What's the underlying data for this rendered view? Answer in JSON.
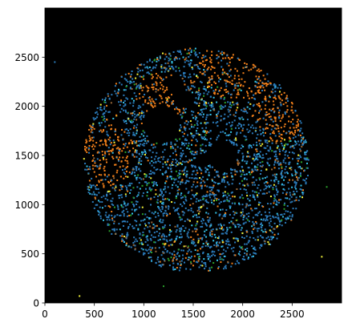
{
  "chart_data": {
    "type": "scatter",
    "title": "",
    "xlabel": "",
    "ylabel": "",
    "xlim": [
      0,
      3000
    ],
    "ylim": [
      0,
      3000
    ],
    "grid": false,
    "background_color": "#000000",
    "x_ticks": [
      0,
      500,
      1000,
      1500,
      2000,
      2500
    ],
    "y_ticks": [
      0,
      500,
      1000,
      1500,
      2000,
      2500
    ],
    "x_tick_labels": [
      "0",
      "500",
      "1000",
      "1500",
      "2000",
      "2500"
    ],
    "y_tick_labels": [
      "0",
      "500",
      "1000",
      "1500",
      "2000",
      "2500"
    ],
    "disc": {
      "center": [
        1530,
        1450
      ],
      "radius": 1140
    },
    "palette": {
      "blue": "#2b7bba",
      "cyan": "#35c4e8",
      "orange": "#f07f1a",
      "yellow": "#f2f23a",
      "green": "#2aa02b",
      "brown": "#9a6a3a"
    },
    "clusters": [
      {
        "center": [
          1950,
          2450
        ],
        "radius": 400,
        "color": "orange"
      },
      {
        "center": [
          600,
          1500
        ],
        "radius": 320,
        "color": "orange"
      },
      {
        "center": [
          2350,
          1900
        ],
        "radius": 260,
        "color": "orange"
      },
      {
        "center": [
          1200,
          2100
        ],
        "radius": 250,
        "color": "orange"
      }
    ],
    "gaps": [
      {
        "center": [
          1180,
          1820
        ],
        "radius": 190
      },
      {
        "center": [
          1320,
          2220
        ],
        "radius": 90
      },
      {
        "center": [
          1800,
          1500
        ],
        "radius": 150
      },
      {
        "center": [
          1590,
          1450
        ],
        "radius": 70
      },
      {
        "center": [
          1420,
          2080
        ],
        "radius": 80
      },
      {
        "center": [
          1300,
          850
        ],
        "radius": 60
      }
    ],
    "outliers": [
      {
        "x": 100,
        "y": 2450,
        "color": "blue"
      },
      {
        "x": 2850,
        "y": 1180,
        "color": "green"
      },
      {
        "x": 2800,
        "y": 470,
        "color": "yellow"
      },
      {
        "x": 1200,
        "y": 170,
        "color": "green"
      },
      {
        "x": 350,
        "y": 70,
        "color": "yellow"
      }
    ]
  }
}
